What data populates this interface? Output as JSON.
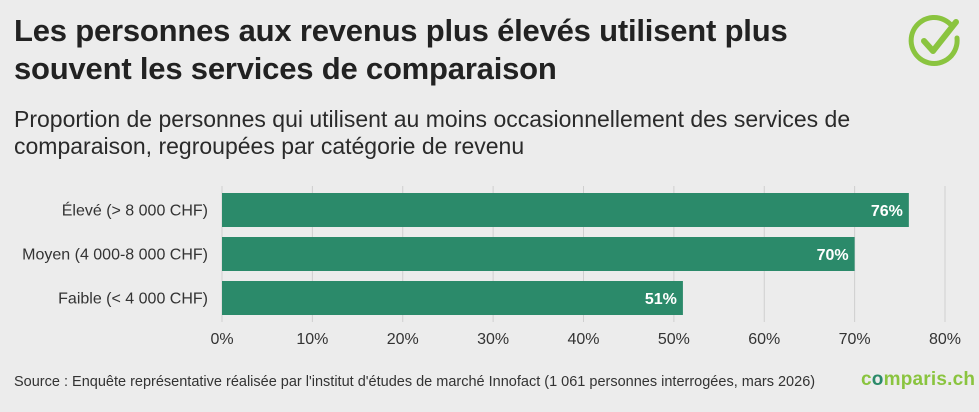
{
  "header": {
    "title": "Les personnes aux revenus plus élevés utilisent plus souvent les services de comparaison",
    "subtitle": "Proportion de personnes qui utilisent au moins occasionnellement des services de comparaison, regroupées par catégorie de revenu"
  },
  "footer": {
    "source": "Source : Enquête représentative réalisée par l'institut d'études de marché Innofact (1 061 personnes interrogées, mars 2026)",
    "brand_prefix": "c",
    "brand_o": "o",
    "brand_suffix": "mparis.ch"
  },
  "colors": {
    "bar": "#2b8a6a",
    "background": "#ececec",
    "grid": "#cfcfcf",
    "brand_green": "#8ac43f"
  },
  "icons": {
    "logo": "checkmark-circle-icon"
  },
  "chart_data": {
    "type": "bar",
    "orientation": "horizontal",
    "categories": [
      "Élevé (> 8 000 CHF)",
      "Moyen (4 000-8 000 CHF)",
      "Faible (< 4 000 CHF)"
    ],
    "values": [
      76,
      70,
      51
    ],
    "value_labels": [
      "76%",
      "70%",
      "51%"
    ],
    "xlim": [
      0,
      80
    ],
    "xticks": [
      0,
      10,
      20,
      30,
      40,
      50,
      60,
      70,
      80
    ],
    "xtick_labels": [
      "0%",
      "10%",
      "20%",
      "30%",
      "40%",
      "50%",
      "60%",
      "70%",
      "80%"
    ],
    "grid": true,
    "xlabel": "",
    "ylabel": ""
  }
}
